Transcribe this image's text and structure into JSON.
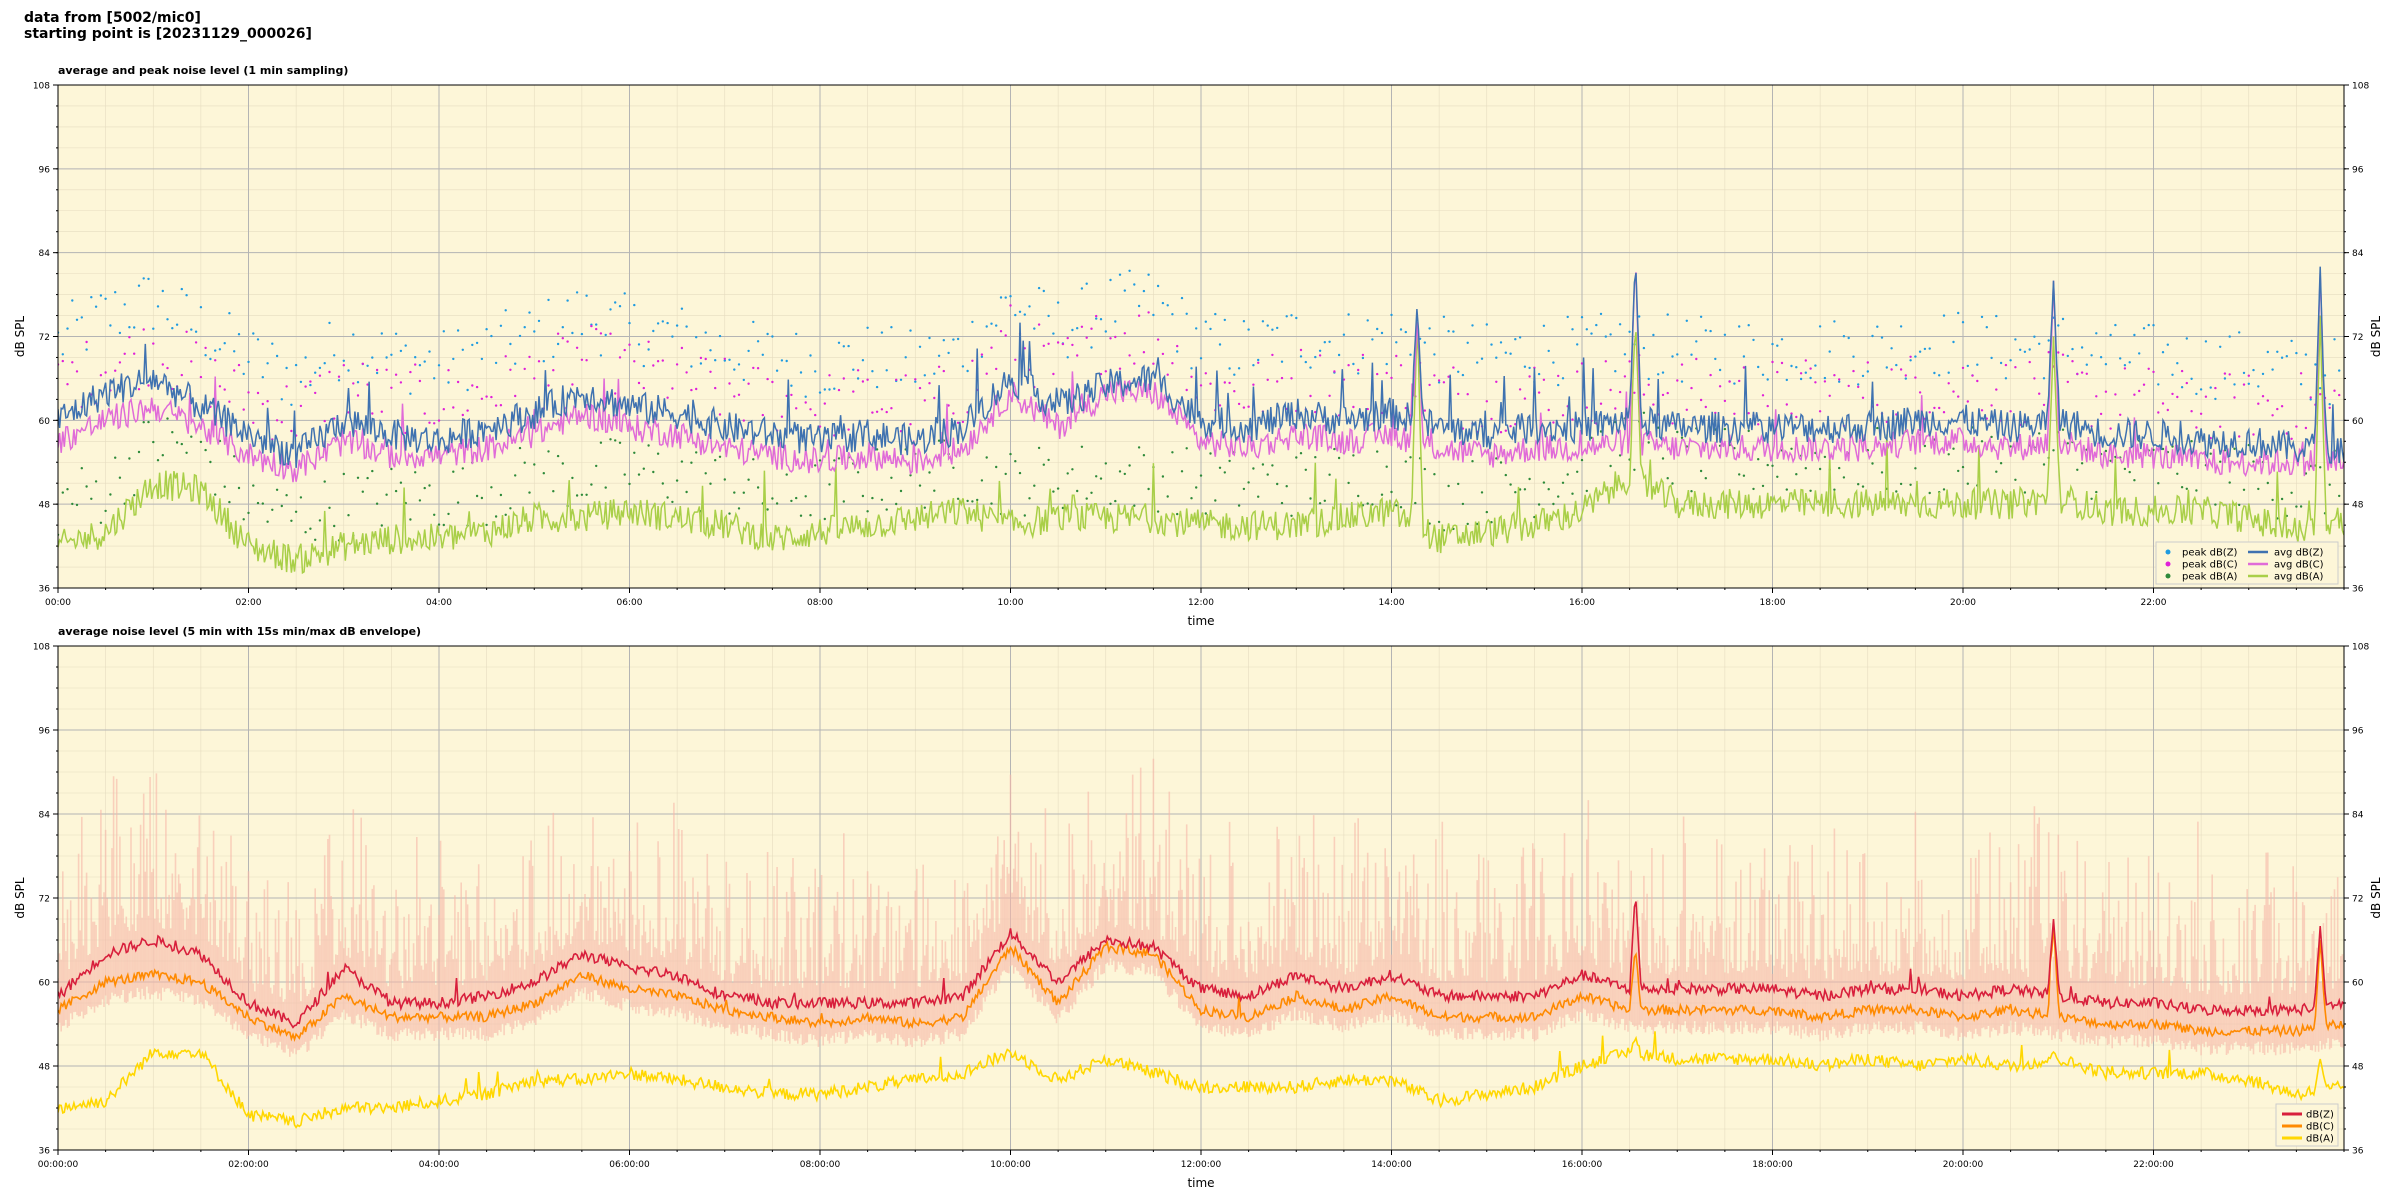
{
  "header": {
    "line1": "data from [5002/mic0]",
    "line2": "starting point is [20231129_000026]"
  },
  "chart_data": [
    {
      "type": "scatter+line",
      "title": "average and peak noise level (1 min sampling)",
      "xlabel": "time",
      "ylabel": "dB SPL",
      "xlim_hours": [
        0,
        24
      ],
      "ylim": [
        36,
        108
      ],
      "yticks": [
        36,
        48,
        60,
        72,
        84,
        96,
        108
      ],
      "xticklabels": [
        "00:00",
        "02:00",
        "04:00",
        "06:00",
        "08:00",
        "10:00",
        "12:00",
        "14:00",
        "16:00",
        "18:00",
        "20:00",
        "22:00"
      ],
      "grid": true,
      "legend_position": "lower-right",
      "legend": [
        "peak dB(Z)",
        "peak dB(C)",
        "peak dB(A)",
        "avg dB(Z)",
        "avg dB(C)",
        "avg dB(A)"
      ],
      "colors": {
        "peakZ": "#1f9be0",
        "peakC": "#e020d8",
        "peakA": "#2e8a3a",
        "avgZ": "#3f72b0",
        "avgC": "#e06bd8",
        "avgA": "#a9cf48"
      },
      "series_avg_z": {
        "x": [
          0,
          0.5,
          1,
          1.5,
          2,
          2.5,
          3,
          3.5,
          4,
          4.5,
          5,
          5.5,
          6,
          6.5,
          7,
          7.5,
          8,
          8.5,
          9,
          9.5,
          10,
          10.5,
          11,
          11.5,
          12,
          12.5,
          13,
          13.5,
          14,
          14.5,
          15,
          15.5,
          16,
          16.5,
          17,
          17.5,
          18,
          18.5,
          19,
          19.5,
          20,
          20.5,
          21,
          21.5,
          22,
          22.5,
          23,
          23.5,
          24
        ],
        "y": [
          60,
          64,
          66,
          62,
          58,
          55,
          60,
          58,
          57,
          59,
          61,
          64,
          62,
          61,
          59,
          58,
          57,
          58,
          57,
          59,
          66,
          62,
          65,
          66,
          60,
          59,
          61,
          60,
          61,
          59,
          58,
          59,
          59,
          60,
          59,
          59,
          59,
          59,
          59,
          60,
          60,
          59,
          60,
          58,
          58,
          57,
          57,
          56,
          56
        ]
      },
      "series_avg_c": {
        "x": [
          0,
          0.5,
          1,
          1.5,
          2,
          2.5,
          3,
          3.5,
          4,
          4.5,
          5,
          5.5,
          6,
          6.5,
          7,
          7.5,
          8,
          8.5,
          9,
          9.5,
          10,
          10.5,
          11,
          11.5,
          12,
          12.5,
          13,
          13.5,
          14,
          14.5,
          15,
          15.5,
          16,
          16.5,
          17,
          17.5,
          18,
          18.5,
          19,
          19.5,
          20,
          20.5,
          21,
          21.5,
          22,
          22.5,
          23,
          23.5,
          24
        ],
        "y": [
          57,
          60,
          62,
          59,
          55,
          53,
          57,
          55,
          55,
          56,
          58,
          61,
          59,
          58,
          56,
          55,
          54,
          55,
          54,
          56,
          64,
          59,
          64,
          64,
          57,
          56,
          58,
          57,
          58,
          56,
          55,
          56,
          56,
          57,
          56,
          56,
          56,
          56,
          56,
          57,
          57,
          56,
          57,
          55,
          55,
          54,
          54,
          54,
          54
        ]
      },
      "series_avg_a": {
        "x": [
          0,
          0.5,
          1,
          1.5,
          2,
          2.5,
          3,
          3.5,
          4,
          4.5,
          5,
          5.5,
          6,
          6.5,
          7,
          7.5,
          8,
          8.5,
          9,
          9.5,
          10,
          10.5,
          11,
          11.5,
          12,
          12.5,
          13,
          13.5,
          14,
          14.5,
          15,
          15.5,
          16,
          16.5,
          17,
          17.5,
          18,
          18.5,
          19,
          19.5,
          20,
          20.5,
          21,
          21.5,
          22,
          22.5,
          23,
          23.5,
          24
        ],
        "y": [
          42,
          44,
          51,
          50,
          42,
          40,
          42,
          43,
          43,
          44,
          46,
          46,
          47,
          46,
          45,
          43,
          44,
          45,
          46,
          47,
          45,
          46,
          46,
          46,
          45,
          45,
          45,
          46,
          47,
          43,
          44,
          45,
          47,
          52,
          48,
          48,
          48,
          48,
          48,
          48,
          48,
          48,
          49,
          47,
          47,
          47,
          46,
          44,
          45
        ]
      }
    },
    {
      "type": "line+envelope",
      "title": "average noise level (5 min with 15s min/max dB envelope)",
      "xlabel": "time",
      "ylabel": "dB SPL",
      "xlim_hours": [
        0,
        24
      ],
      "ylim": [
        36,
        108
      ],
      "yticks": [
        36,
        48,
        60,
        72,
        84,
        96,
        108
      ],
      "xticklabels": [
        "00:00:00",
        "02:00:00",
        "04:00:00",
        "06:00:00",
        "08:00:00",
        "10:00:00",
        "12:00:00",
        "14:00:00",
        "16:00:00",
        "18:00:00",
        "20:00:00",
        "22:00:00"
      ],
      "grid": true,
      "legend_position": "lower-right",
      "legend": [
        "dB(Z)",
        "dB(C)",
        "dB(A)"
      ],
      "colors": {
        "z": "#d81f3c",
        "c": "#ff8a00",
        "a": "#ffd700",
        "envelope": "#f6b8a8"
      },
      "series_z": {
        "x": [
          0,
          0.5,
          1,
          1.5,
          2,
          2.5,
          3,
          3.5,
          4,
          4.5,
          5,
          5.5,
          6,
          6.5,
          7,
          7.5,
          8,
          8.5,
          9,
          9.5,
          10,
          10.5,
          11,
          11.5,
          12,
          12.5,
          13,
          13.5,
          14,
          14.5,
          15,
          15.5,
          16,
          16.5,
          17,
          17.5,
          18,
          18.5,
          19,
          19.5,
          20,
          20.5,
          21,
          21.5,
          22,
          22.5,
          23,
          23.5,
          24
        ],
        "y": [
          58,
          64,
          66,
          64,
          57,
          54,
          62,
          57,
          57,
          58,
          60,
          64,
          62,
          61,
          58,
          57,
          57,
          57,
          57,
          58,
          67,
          60,
          66,
          65,
          59,
          58,
          61,
          59,
          61,
          58,
          58,
          58,
          61,
          59,
          59,
          59,
          59,
          58,
          59,
          59,
          58,
          59,
          58,
          57,
          57,
          56,
          56,
          56,
          57
        ]
      },
      "series_c": {
        "x": [
          0,
          0.5,
          1,
          1.5,
          2,
          2.5,
          3,
          3.5,
          4,
          4.5,
          5,
          5.5,
          6,
          6.5,
          7,
          7.5,
          8,
          8.5,
          9,
          9.5,
          10,
          10.5,
          11,
          11.5,
          12,
          12.5,
          13,
          13.5,
          14,
          14.5,
          15,
          15.5,
          16,
          16.5,
          17,
          17.5,
          18,
          18.5,
          19,
          19.5,
          20,
          20.5,
          21,
          21.5,
          22,
          22.5,
          23,
          23.5,
          24
        ],
        "y": [
          56,
          60,
          61,
          60,
          55,
          52,
          58,
          55,
          55,
          55,
          57,
          61,
          59,
          58,
          56,
          55,
          54,
          55,
          54,
          55,
          65,
          57,
          65,
          64,
          56,
          55,
          58,
          56,
          58,
          55,
          55,
          55,
          58,
          56,
          56,
          56,
          56,
          55,
          56,
          56,
          55,
          56,
          55,
          54,
          54,
          53,
          53,
          53,
          54
        ]
      },
      "series_a": {
        "x": [
          0,
          0.5,
          1,
          1.5,
          2,
          2.5,
          3,
          3.5,
          4,
          4.5,
          5,
          5.5,
          6,
          6.5,
          7,
          7.5,
          8,
          8.5,
          9,
          9.5,
          10,
          10.5,
          11,
          11.5,
          12,
          12.5,
          13,
          13.5,
          14,
          14.5,
          15,
          15.5,
          16,
          16.5,
          17,
          17.5,
          18,
          18.5,
          19,
          19.5,
          20,
          20.5,
          21,
          21.5,
          22,
          22.5,
          23,
          23.5,
          24
        ],
        "y": [
          42,
          43,
          50,
          50,
          41,
          40,
          42,
          42,
          43,
          44,
          46,
          46,
          47,
          46,
          45,
          44,
          44,
          45,
          46,
          47,
          50,
          46,
          49,
          47,
          45,
          45,
          45,
          46,
          46,
          43,
          44,
          45,
          48,
          50,
          49,
          49,
          49,
          48,
          49,
          48,
          49,
          48,
          49,
          47,
          47,
          47,
          46,
          44,
          45
        ]
      },
      "spikes": [
        {
          "x": 16.56,
          "z": 73,
          "c": 65,
          "a": 52
        },
        {
          "x": 20.95,
          "z": 69,
          "c": 68,
          "a": 50
        },
        {
          "x": 23.75,
          "z": 68,
          "c": 66,
          "a": 49
        }
      ]
    }
  ]
}
